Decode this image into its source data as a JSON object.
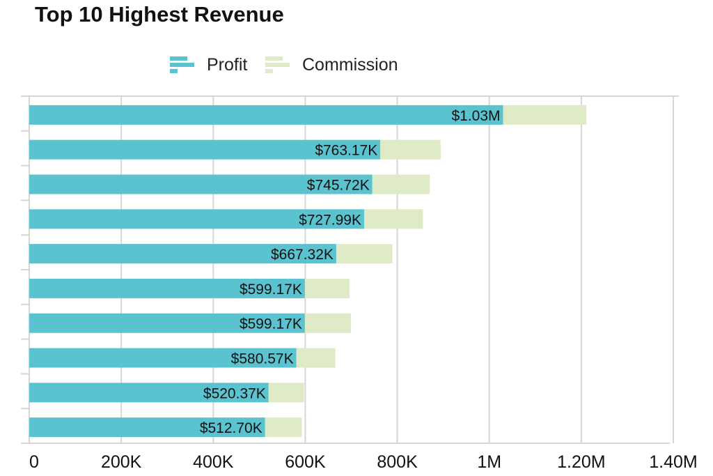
{
  "chart_data": {
    "type": "bar",
    "orientation": "horizontal",
    "stacked": true,
    "title": "Top 10 Highest Revenue",
    "xlim": [
      0,
      1400000
    ],
    "x_ticks": [
      0,
      200000,
      400000,
      600000,
      800000,
      1000000,
      1200000,
      1400000
    ],
    "x_tick_labels": [
      "0",
      "200K",
      "400K",
      "600K",
      "800K",
      "1M",
      "1.20M",
      "1.40M"
    ],
    "grid": true,
    "legend": "top",
    "series": [
      {
        "name": "Profit",
        "color": "#5bc2d0",
        "values": [
          1030000,
          763170,
          745720,
          727990,
          667320,
          599170,
          599170,
          580570,
          520370,
          512700
        ],
        "data_labels": [
          "$1.03M",
          "$763.17K",
          "$745.72K",
          "$727.99K",
          "$667.32K",
          "$599.17K",
          "$599.17K",
          "$580.57K",
          "$520.37K",
          "$512.70K"
        ]
      },
      {
        "name": "Commission",
        "color": "#dfeac6",
        "values": [
          181000,
          131000,
          125000,
          128000,
          122000,
          97000,
          100000,
          85000,
          77000,
          80000
        ]
      }
    ]
  }
}
